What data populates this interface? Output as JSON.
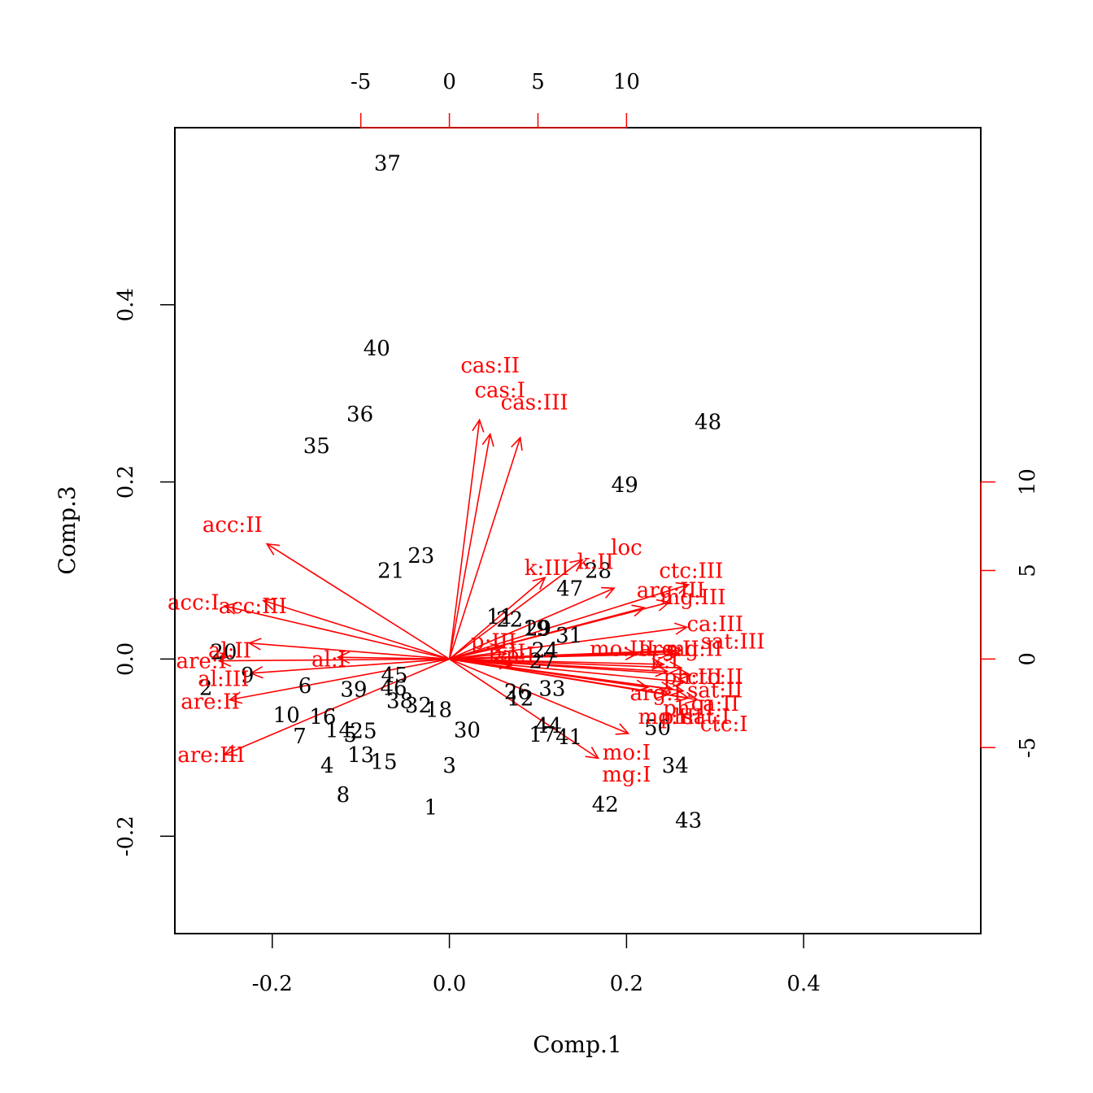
{
  "chart_data": {
    "type": "scatter",
    "subtype": "biplot",
    "title": "",
    "xlabel": "Comp.1",
    "ylabel": "Comp.3",
    "xlim": [
      -0.31,
      0.6
    ],
    "ylim": [
      -0.31,
      0.6
    ],
    "x_ticks": [
      "-0.2",
      "0.0",
      "0.2",
      "0.4"
    ],
    "y_ticks": [
      "-0.2",
      "0.0",
      "0.2",
      "0.4"
    ],
    "loading_ticks_x": [
      "-5",
      "0",
      "5",
      "10"
    ],
    "loading_ticks_y": [
      "-5",
      "0",
      "5",
      "10"
    ],
    "loading_scale": 0.02,
    "grid": false,
    "colors": {
      "points": "#000000",
      "arrows": "#ff0000"
    },
    "observations": [
      {
        "label": "1",
        "x": -0.021,
        "y": -0.167
      },
      {
        "label": "2",
        "x": -0.275,
        "y": -0.032
      },
      {
        "label": "3",
        "x": 0.0,
        "y": -0.12
      },
      {
        "label": "4",
        "x": -0.138,
        "y": -0.12
      },
      {
        "label": "5",
        "x": -0.112,
        "y": -0.085
      },
      {
        "label": "6",
        "x": -0.163,
        "y": -0.03
      },
      {
        "label": "7",
        "x": -0.169,
        "y": -0.087
      },
      {
        "label": "8",
        "x": -0.12,
        "y": -0.153
      },
      {
        "label": "9",
        "x": -0.228,
        "y": -0.018
      },
      {
        "label": "10",
        "x": -0.184,
        "y": -0.063
      },
      {
        "label": "11",
        "x": 0.057,
        "y": 0.048
      },
      {
        "label": "12",
        "x": 0.08,
        "y": -0.044
      },
      {
        "label": "13",
        "x": -0.1,
        "y": -0.108
      },
      {
        "label": "14",
        "x": -0.125,
        "y": -0.08
      },
      {
        "label": "15",
        "x": -0.074,
        "y": -0.116
      },
      {
        "label": "16",
        "x": -0.143,
        "y": -0.065
      },
      {
        "label": "17",
        "x": 0.105,
        "y": -0.085
      },
      {
        "label": "18",
        "x": -0.012,
        "y": -0.057
      },
      {
        "label": "19",
        "x": 0.098,
        "y": 0.035
      },
      {
        "label": "20",
        "x": -0.255,
        "y": 0.008
      },
      {
        "label": "21",
        "x": -0.066,
        "y": 0.1
      },
      {
        "label": "22",
        "x": 0.068,
        "y": 0.045
      },
      {
        "label": "23",
        "x": -0.032,
        "y": 0.117
      },
      {
        "label": "24",
        "x": 0.108,
        "y": 0.01
      },
      {
        "label": "25",
        "x": -0.097,
        "y": -0.081
      },
      {
        "label": "26",
        "x": 0.077,
        "y": -0.037
      },
      {
        "label": "27",
        "x": 0.105,
        "y": -0.002
      },
      {
        "label": "28",
        "x": 0.168,
        "y": 0.1
      },
      {
        "label": "29",
        "x": 0.1,
        "y": 0.035
      },
      {
        "label": "30",
        "x": 0.02,
        "y": -0.08
      },
      {
        "label": "31",
        "x": 0.135,
        "y": 0.027
      },
      {
        "label": "32",
        "x": -0.035,
        "y": -0.052
      },
      {
        "label": "33",
        "x": 0.116,
        "y": -0.033
      },
      {
        "label": "34",
        "x": 0.255,
        "y": -0.12
      },
      {
        "label": "35",
        "x": -0.15,
        "y": 0.241
      },
      {
        "label": "36",
        "x": -0.101,
        "y": 0.277
      },
      {
        "label": "37",
        "x": -0.07,
        "y": 0.56
      },
      {
        "label": "38",
        "x": -0.056,
        "y": -0.047
      },
      {
        "label": "39",
        "x": -0.108,
        "y": -0.034
      },
      {
        "label": "40",
        "x": -0.082,
        "y": 0.351
      },
      {
        "label": "41",
        "x": 0.135,
        "y": -0.088
      },
      {
        "label": "42",
        "x": 0.176,
        "y": -0.164
      },
      {
        "label": "43",
        "x": 0.27,
        "y": -0.182
      },
      {
        "label": "44",
        "x": 0.112,
        "y": -0.075
      },
      {
        "label": "45",
        "x": -0.062,
        "y": -0.018
      },
      {
        "label": "46",
        "x": -0.063,
        "y": -0.032
      },
      {
        "label": "47",
        "x": 0.136,
        "y": 0.08
      },
      {
        "label": "48",
        "x": 0.292,
        "y": 0.268
      },
      {
        "label": "49",
        "x": 0.198,
        "y": 0.197
      },
      {
        "label": "50",
        "x": 0.235,
        "y": -0.077
      }
    ],
    "loadings": [
      {
        "label": "cas:II",
        "x": 1.7,
        "y": 13.5,
        "lx": 0.046,
        "ly": 0.332
      },
      {
        "label": "cas:I",
        "x": 2.3,
        "y": 12.7,
        "lx": 0.057,
        "ly": 0.304
      },
      {
        "label": "cas:III",
        "x": 4.0,
        "y": 12.5,
        "lx": 0.096,
        "ly": 0.29
      },
      {
        "label": "acc:II",
        "x": -10.3,
        "y": 6.5,
        "lx": -0.245,
        "ly": 0.152
      },
      {
        "label": "acc:I",
        "x": -12.7,
        "y": 3.0,
        "lx": -0.289,
        "ly": 0.064
      },
      {
        "label": "acc:III",
        "x": -10.5,
        "y": 3.3,
        "lx": -0.222,
        "ly": 0.06
      },
      {
        "label": "al:II",
        "x": -11.3,
        "y": 0.9,
        "lx": -0.248,
        "ly": 0.01
      },
      {
        "label": "are:I",
        "x": -13.0,
        "y": -0.1,
        "lx": -0.28,
        "ly": -0.002
      },
      {
        "label": "al:I",
        "x": -6.3,
        "y": 0.1,
        "lx": -0.136,
        "ly": 0.0
      },
      {
        "label": "al:III",
        "x": -11.2,
        "y": -0.8,
        "lx": -0.255,
        "ly": -0.022
      },
      {
        "label": "are:II",
        "x": -12.4,
        "y": -2.3,
        "lx": -0.27,
        "ly": -0.048
      },
      {
        "label": "are:III",
        "x": -12.7,
        "y": -5.4,
        "lx": -0.269,
        "ly": -0.108
      },
      {
        "label": "k:III",
        "x": 5.4,
        "y": 4.6,
        "lx": 0.11,
        "ly": 0.103
      },
      {
        "label": "k:II",
        "x": 7.5,
        "y": 5.6,
        "lx": 0.165,
        "ly": 0.11
      },
      {
        "label": "loc",
        "x": 9.3,
        "y": 4.0,
        "lx": 0.2,
        "ly": 0.126
      },
      {
        "label": "ctc:III",
        "x": 13.5,
        "y": 4.2,
        "lx": 0.273,
        "ly": 0.1
      },
      {
        "label": "arg:III",
        "x": 11.0,
        "y": 2.9,
        "lx": 0.25,
        "ly": 0.078
      },
      {
        "label": "mg:III",
        "x": 12.4,
        "y": 3.2,
        "lx": 0.275,
        "ly": 0.07
      },
      {
        "label": "ca:III",
        "x": 13.4,
        "y": 1.8,
        "lx": 0.3,
        "ly": 0.04
      },
      {
        "label": "sat:III",
        "x": 13.1,
        "y": 0.5,
        "lx": 0.32,
        "ly": 0.02
      },
      {
        "label": "mo:III",
        "x": 10.6,
        "y": 0.3,
        "lx": 0.195,
        "ly": 0.012
      },
      {
        "label": "arg:II",
        "x": 12.6,
        "y": 0.4,
        "lx": 0.248,
        "ly": 0.012
      },
      {
        "label": "mg:II",
        "x": 13.0,
        "y": 0.3,
        "lx": 0.276,
        "ly": 0.012
      },
      {
        "label": "k:I",
        "x": 12.1,
        "y": -0.3,
        "lx": 0.243,
        "ly": -0.002
      },
      {
        "label": "ph:III",
        "x": 13.1,
        "y": -0.5,
        "lx": 0.275,
        "ly": -0.02
      },
      {
        "label": "ctc:II",
        "x": 13.6,
        "y": -0.9,
        "lx": 0.3,
        "ly": -0.02
      },
      {
        "label": "arg:I",
        "x": 12.3,
        "y": -0.7,
        "lx": 0.233,
        "ly": -0.038
      },
      {
        "label": "sat:II",
        "x": 13.3,
        "y": -1.3,
        "lx": 0.3,
        "ly": -0.035
      },
      {
        "label": "ph:II",
        "x": 12.6,
        "y": -1.7,
        "lx": 0.27,
        "ly": -0.055
      },
      {
        "label": "ca:II",
        "x": 13.2,
        "y": -1.8,
        "lx": 0.3,
        "ly": -0.05
      },
      {
        "label": "mo:II",
        "x": 11.2,
        "y": -1.6,
        "lx": 0.245,
        "ly": -0.065
      },
      {
        "label": "ph:I",
        "x": 12.4,
        "y": -2.0,
        "lx": 0.262,
        "ly": -0.065
      },
      {
        "label": "sat:I",
        "x": 13.5,
        "y": -2.2,
        "lx": 0.29,
        "ly": -0.065
      },
      {
        "label": "ctc:I",
        "x": 14.0,
        "y": -2.3,
        "lx": 0.31,
        "ly": -0.073
      },
      {
        "label": "mo:I",
        "x": 8.4,
        "y": -5.6,
        "lx": 0.2,
        "ly": -0.105
      },
      {
        "label": "mg:I",
        "x": 10.1,
        "y": -4.2,
        "lx": 0.2,
        "ly": -0.13
      },
      {
        "label": "p:III",
        "x": 3.0,
        "y": 0.7,
        "lx": 0.05,
        "ly": 0.02
      },
      {
        "label": "p:II",
        "x": 3.2,
        "y": 0.3,
        "lx": 0.065,
        "ly": 0.008
      },
      {
        "label": "p:I",
        "x": 3.5,
        "y": -0.3,
        "lx": 0.08,
        "ly": 0.005
      }
    ]
  }
}
